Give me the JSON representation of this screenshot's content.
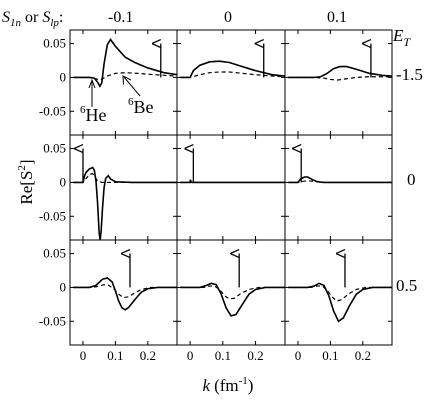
{
  "header": {
    "s_label": "S",
    "s1_sub": "1n",
    "s_or": "or",
    "s2_sub": "lp",
    "colon": ":",
    "columns": [
      "-0.1",
      "0",
      "0.1"
    ],
    "et_label": "E",
    "et_sub": "T",
    "rows": [
      "-1.5",
      "0",
      "0.5"
    ]
  },
  "annotations": {
    "he_mass": "6",
    "he_name": "He",
    "be_mass": "6",
    "be_name": "Be"
  },
  "chart_data": {
    "type": "line",
    "xlabel": {
      "var": "k",
      "unit": "(fm",
      "exp": "-1",
      "close": ")"
    },
    "ylabel": {
      "base": "Re[S",
      "exp": "2",
      "close": "]"
    },
    "xlim": [
      -0.04,
      0.29
    ],
    "ylim": [
      -0.085,
      0.07
    ],
    "x_ticks": [
      "0",
      "0.1",
      "0.2"
    ],
    "y_ticks": [
      "0.05",
      "0",
      "-0.05"
    ],
    "x_tick_values": [
      0,
      0.1,
      0.2
    ],
    "y_tick_values": [
      0.05,
      0,
      -0.05
    ],
    "series_styles": {
      "he6": "solid",
      "be6": "dashed"
    },
    "panels": [
      {
        "row": 0,
        "col": 0,
        "arrow_k": 0.24,
        "he6": [
          [
            -0.03,
            0
          ],
          [
            0.02,
            0
          ],
          [
            0.035,
            -0.001
          ],
          [
            0.045,
            -0.007
          ],
          [
            0.052,
            -0.013
          ],
          [
            0.058,
            -0.008
          ],
          [
            0.065,
            0.02
          ],
          [
            0.075,
            0.048
          ],
          [
            0.085,
            0.056
          ],
          [
            0.1,
            0.046
          ],
          [
            0.13,
            0.03
          ],
          [
            0.16,
            0.022
          ],
          [
            0.2,
            0.014
          ],
          [
            0.25,
            0.007
          ],
          [
            0.29,
            0.004
          ]
        ],
        "be6": [
          [
            -0.03,
            0
          ],
          [
            0.02,
            0
          ],
          [
            0.04,
            -0.002
          ],
          [
            0.05,
            -0.0035
          ],
          [
            0.06,
            -0.002
          ],
          [
            0.075,
            0.002
          ],
          [
            0.1,
            0.006
          ],
          [
            0.13,
            0.007
          ],
          [
            0.17,
            0.006
          ],
          [
            0.22,
            0.004
          ],
          [
            0.29,
            0.002
          ]
        ]
      },
      {
        "row": 0,
        "col": 1,
        "arrow_k": 0.225,
        "he6": [
          [
            -0.03,
            0
          ],
          [
            0,
            0
          ],
          [
            0.01,
            0.01
          ],
          [
            0.03,
            0.018
          ],
          [
            0.06,
            0.023
          ],
          [
            0.09,
            0.024
          ],
          [
            0.12,
            0.022
          ],
          [
            0.16,
            0.016
          ],
          [
            0.2,
            0.01
          ],
          [
            0.25,
            0.004
          ],
          [
            0.29,
            0.002
          ]
        ],
        "be6": [
          [
            -0.03,
            0
          ],
          [
            0,
            0
          ],
          [
            0.03,
            0.004
          ],
          [
            0.06,
            0.007
          ],
          [
            0.09,
            0.008
          ],
          [
            0.12,
            0.008
          ],
          [
            0.16,
            0.006
          ],
          [
            0.2,
            0.004
          ],
          [
            0.25,
            0.002
          ],
          [
            0.29,
            0.001
          ]
        ]
      },
      {
        "row": 0,
        "col": 2,
        "arrow_k": 0.225,
        "he6": [
          [
            -0.03,
            0
          ],
          [
            0.05,
            0
          ],
          [
            0.07,
            0.001
          ],
          [
            0.09,
            0.006
          ],
          [
            0.11,
            0.013
          ],
          [
            0.13,
            0.016
          ],
          [
            0.15,
            0.016
          ],
          [
            0.18,
            0.012
          ],
          [
            0.22,
            0.006
          ],
          [
            0.26,
            0.003
          ],
          [
            0.29,
            0.002
          ]
        ],
        "be6": [
          [
            -0.03,
            0
          ],
          [
            0.05,
            0
          ],
          [
            0.08,
            -0.001
          ],
          [
            0.1,
            -0.003
          ],
          [
            0.12,
            -0.004
          ],
          [
            0.15,
            -0.002
          ],
          [
            0.18,
            0
          ],
          [
            0.22,
            0.001
          ],
          [
            0.29,
            0.001
          ]
        ]
      },
      {
        "row": 1,
        "col": 0,
        "arrow_k": 0.0,
        "he6": [
          [
            -0.03,
            0
          ],
          [
            0,
            0
          ],
          [
            0.005,
            0.01
          ],
          [
            0.01,
            0.015
          ],
          [
            0.02,
            0.02
          ],
          [
            0.03,
            0.022
          ],
          [
            0.035,
            0.018
          ],
          [
            0.04,
            0.003
          ],
          [
            0.045,
            -0.03
          ],
          [
            0.05,
            -0.075
          ],
          [
            0.053,
            -0.085
          ],
          [
            0.056,
            -0.072
          ],
          [
            0.06,
            -0.04
          ],
          [
            0.065,
            -0.008
          ],
          [
            0.07,
            0.006
          ],
          [
            0.078,
            0.01
          ],
          [
            0.085,
            0.005
          ],
          [
            0.1,
            0.001
          ],
          [
            0.15,
            0
          ],
          [
            0.29,
            0
          ]
        ],
        "be6": [
          [
            -0.03,
            0
          ],
          [
            0,
            0
          ],
          [
            0.01,
            0.006
          ],
          [
            0.02,
            0.012
          ],
          [
            0.03,
            0.013
          ],
          [
            0.037,
            0.008
          ],
          [
            0.045,
            0.002
          ],
          [
            0.06,
            0
          ],
          [
            0.29,
            0
          ]
        ]
      },
      {
        "row": 1,
        "col": 1,
        "arrow_k": 0.01,
        "he6": [
          [
            -0.03,
            0
          ],
          [
            0,
            0
          ],
          [
            0.001,
            0.004
          ],
          [
            0.003,
            0.001
          ],
          [
            0.006,
            0
          ],
          [
            0.29,
            0
          ]
        ],
        "be6": [
          [
            -0.03,
            0
          ],
          [
            0,
            0
          ],
          [
            0.29,
            0
          ]
        ]
      },
      {
        "row": 1,
        "col": 2,
        "arrow_k": 0.01,
        "he6": [
          [
            -0.03,
            0
          ],
          [
            0,
            0
          ],
          [
            0.008,
            0.005
          ],
          [
            0.02,
            0.008
          ],
          [
            0.03,
            0.008
          ],
          [
            0.045,
            0.004
          ],
          [
            0.06,
            0.001
          ],
          [
            0.08,
            0
          ],
          [
            0.29,
            0
          ]
        ],
        "be6": [
          [
            -0.03,
            0
          ],
          [
            0,
            0
          ],
          [
            0.02,
            0.002
          ],
          [
            0.04,
            0.002
          ],
          [
            0.06,
            0.001
          ],
          [
            0.08,
            0
          ],
          [
            0.29,
            0
          ]
        ]
      },
      {
        "row": 2,
        "col": 0,
        "arrow_k": 0.145,
        "he6": [
          [
            -0.03,
            0
          ],
          [
            0.02,
            0
          ],
          [
            0.04,
            0.003
          ],
          [
            0.06,
            0.012
          ],
          [
            0.075,
            0.014
          ],
          [
            0.09,
            0.008
          ],
          [
            0.1,
            -0.005
          ],
          [
            0.11,
            -0.02
          ],
          [
            0.12,
            -0.03
          ],
          [
            0.13,
            -0.033
          ],
          [
            0.14,
            -0.03
          ],
          [
            0.16,
            -0.018
          ],
          [
            0.18,
            -0.007
          ],
          [
            0.2,
            -0.002
          ],
          [
            0.23,
            0
          ],
          [
            0.29,
            0
          ]
        ],
        "be6": [
          [
            -0.03,
            0
          ],
          [
            0.03,
            0
          ],
          [
            0.05,
            0.002
          ],
          [
            0.065,
            0.004
          ],
          [
            0.08,
            0.003
          ],
          [
            0.095,
            -0.002
          ],
          [
            0.11,
            -0.01
          ],
          [
            0.125,
            -0.015
          ],
          [
            0.14,
            -0.014
          ],
          [
            0.16,
            -0.008
          ],
          [
            0.18,
            -0.003
          ],
          [
            0.21,
            0
          ],
          [
            0.29,
            0
          ]
        ]
      },
      {
        "row": 2,
        "col": 1,
        "arrow_k": 0.15,
        "he6": [
          [
            -0.03,
            0
          ],
          [
            0.03,
            0
          ],
          [
            0.05,
            0.003
          ],
          [
            0.065,
            0.006
          ],
          [
            0.08,
            0.004
          ],
          [
            0.095,
            -0.01
          ],
          [
            0.11,
            -0.03
          ],
          [
            0.125,
            -0.042
          ],
          [
            0.14,
            -0.04
          ],
          [
            0.16,
            -0.025
          ],
          [
            0.18,
            -0.01
          ],
          [
            0.2,
            -0.003
          ],
          [
            0.23,
            0
          ],
          [
            0.29,
            0
          ]
        ],
        "be6": [
          [
            -0.03,
            0
          ],
          [
            0.04,
            0
          ],
          [
            0.06,
            0.002
          ],
          [
            0.075,
            0.002
          ],
          [
            0.09,
            -0.003
          ],
          [
            0.105,
            -0.012
          ],
          [
            0.12,
            -0.017
          ],
          [
            0.135,
            -0.016
          ],
          [
            0.155,
            -0.009
          ],
          [
            0.18,
            -0.003
          ],
          [
            0.21,
            0
          ],
          [
            0.29,
            0
          ]
        ]
      },
      {
        "row": 2,
        "col": 2,
        "arrow_k": 0.145,
        "he6": [
          [
            -0.03,
            0
          ],
          [
            0.03,
            0
          ],
          [
            0.05,
            0.002
          ],
          [
            0.065,
            0.006
          ],
          [
            0.08,
            0.003
          ],
          [
            0.095,
            -0.012
          ],
          [
            0.11,
            -0.035
          ],
          [
            0.125,
            -0.05
          ],
          [
            0.14,
            -0.045
          ],
          [
            0.16,
            -0.026
          ],
          [
            0.18,
            -0.01
          ],
          [
            0.2,
            -0.003
          ],
          [
            0.23,
            0
          ],
          [
            0.29,
            0
          ]
        ],
        "be6": [
          [
            -0.03,
            0
          ],
          [
            0.04,
            0
          ],
          [
            0.06,
            0.002
          ],
          [
            0.075,
            0.002
          ],
          [
            0.09,
            -0.004
          ],
          [
            0.105,
            -0.014
          ],
          [
            0.12,
            -0.02
          ],
          [
            0.135,
            -0.018
          ],
          [
            0.155,
            -0.01
          ],
          [
            0.18,
            -0.003
          ],
          [
            0.21,
            0
          ],
          [
            0.29,
            0
          ]
        ]
      }
    ]
  }
}
